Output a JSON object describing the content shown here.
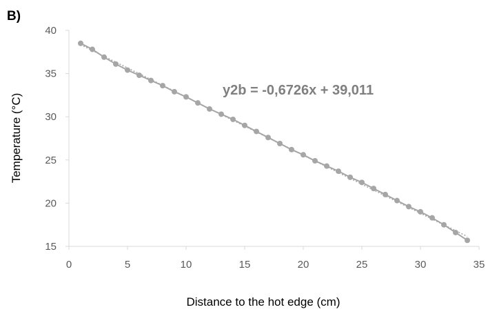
{
  "chart_data": {
    "type": "scatter",
    "panel_label": "B)",
    "title": "",
    "xlabel": "Distance to the hot edge (cm)",
    "ylabel": "Temperature (°C)",
    "xlim": [
      0,
      35
    ],
    "ylim": [
      15,
      40
    ],
    "xticks": [
      0,
      5,
      10,
      15,
      20,
      25,
      30,
      35
    ],
    "yticks": [
      15,
      20,
      25,
      30,
      35,
      40
    ],
    "grid": false,
    "legend": "none",
    "annotation": "y2b = -0,6726x + 39,011",
    "trendline": {
      "slope": -0.6726,
      "intercept": 39.011,
      "style": "dotted"
    },
    "series": [
      {
        "color": "#a6a6a6",
        "x": [
          1,
          2,
          3,
          4,
          5,
          6,
          7,
          8,
          9,
          10,
          11,
          12,
          13,
          14,
          15,
          16,
          17,
          18,
          19,
          20,
          21,
          22,
          23,
          24,
          25,
          26,
          27,
          28,
          29,
          30,
          31,
          32,
          33,
          34
        ],
        "y": [
          38.5,
          37.8,
          36.9,
          36.1,
          35.4,
          34.8,
          34.2,
          33.6,
          32.9,
          32.3,
          31.6,
          30.9,
          30.3,
          29.7,
          29.0,
          28.3,
          27.6,
          26.9,
          26.2,
          25.6,
          24.9,
          24.3,
          23.7,
          23.0,
          22.4,
          21.7,
          21.0,
          20.3,
          19.6,
          19.0,
          18.3,
          17.5,
          16.6,
          15.7
        ]
      }
    ]
  }
}
